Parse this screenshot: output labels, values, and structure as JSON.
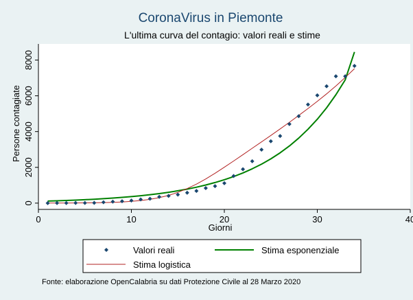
{
  "chart_data": {
    "type": "scatter",
    "title": "CoronaVirus in Piemonte",
    "subtitle": "L'ultima curva del contagio: valori reali e stime",
    "xlabel": "Giorni",
    "ylabel": "Persone contagiate",
    "xlim": [
      0,
      40
    ],
    "ylim": [
      -350,
      8900
    ],
    "xticks": [
      0,
      10,
      20,
      30,
      40
    ],
    "yticks": [
      0,
      2000,
      4000,
      6000,
      8000
    ],
    "grid": false,
    "legend_position": "bottom",
    "note": "Fonte: elaborazione OpenCalabria su dati Protezione Civile al 28 Marzo 2020",
    "colors": {
      "background": "#eaf2f3",
      "plot": "#ffffff",
      "title": "#1a476f",
      "points": "#1a476f",
      "exp": "#008000",
      "log": "#b22222"
    },
    "series": [
      {
        "name": "Valori reali",
        "kind": "markers",
        "x": [
          1,
          2,
          3,
          4,
          5,
          6,
          7,
          8,
          9,
          10,
          11,
          12,
          13,
          14,
          15,
          16,
          17,
          18,
          19,
          20,
          21,
          22,
          23,
          24,
          25,
          26,
          27,
          28,
          29,
          30,
          31,
          32,
          33,
          34
        ],
        "y": [
          0,
          3,
          6,
          11,
          11,
          13,
          49,
          82,
          105,
          143,
          207,
          243,
          350,
          401,
          474,
          582,
          680,
          840,
          950,
          1111,
          1516,
          1897,
          2341,
          2989,
          3461,
          3752,
          4420,
          4861,
          5515,
          6024,
          6534,
          7092,
          7092,
          7671
        ]
      },
      {
        "name": "Stima esponenziale",
        "kind": "line",
        "x": [
          1,
          2,
          3,
          4,
          5,
          6,
          7,
          8,
          9,
          10,
          11,
          12,
          13,
          14,
          15,
          16,
          17,
          18,
          19,
          20,
          21,
          22,
          23,
          24,
          25,
          26,
          27,
          28,
          29,
          30,
          31,
          32,
          33,
          34
        ],
        "y": [
          115,
          131,
          149,
          169,
          192,
          218,
          248,
          282,
          320,
          364,
          414,
          470,
          534,
          607,
          690,
          784,
          891,
          1012,
          1150,
          1307,
          1485,
          1688,
          1918,
          2179,
          2476,
          2814,
          3197,
          3633,
          4129,
          4691,
          5331,
          6058,
          6884,
          8450
        ]
      },
      {
        "name": "Stima logistica",
        "kind": "line",
        "x": [
          1,
          2,
          3,
          4,
          5,
          6,
          7,
          8,
          9,
          10,
          11,
          12,
          13,
          14,
          15,
          16,
          17,
          18,
          19,
          20,
          21,
          22,
          23,
          24,
          25,
          26,
          27,
          28,
          29,
          30,
          31,
          32,
          33,
          34
        ],
        "y": [
          2,
          4,
          6,
          9,
          13,
          19,
          29,
          44,
          66,
          98,
          145,
          212,
          306,
          434,
          602,
          812,
          1064,
          1352,
          1669,
          2006,
          2355,
          2710,
          3067,
          3424,
          3785,
          4150,
          4520,
          4900,
          5290,
          5690,
          6110,
          6550,
          7020,
          7520
        ]
      }
    ]
  }
}
